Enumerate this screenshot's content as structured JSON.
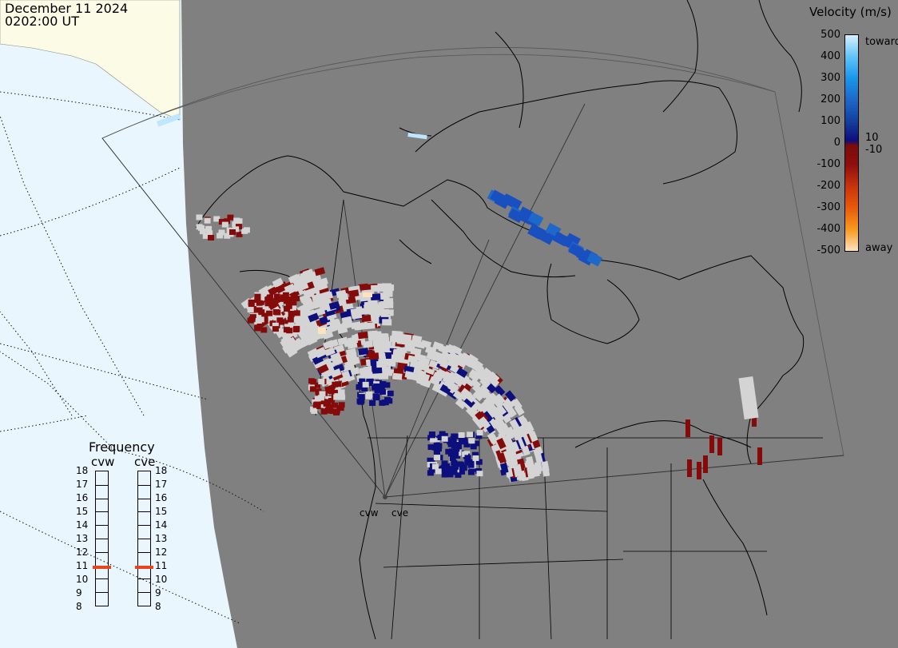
{
  "header": {
    "date": "December 11 2024",
    "time": "0202:00 UT"
  },
  "legend": {
    "title": "Velocity (m/s)",
    "ticks": [
      "500",
      "400",
      "300",
      "200",
      "100",
      "0",
      "-100",
      "-200",
      "-300",
      "-400",
      "-500"
    ],
    "tick_values": [
      500,
      400,
      300,
      200,
      100,
      0,
      -100,
      -200,
      -300,
      -400,
      -500
    ],
    "extra_labels": {
      "pos_small": "10",
      "neg_small": "-10",
      "top": "toward",
      "bottom": "away"
    },
    "color_stops": [
      {
        "v": 500,
        "c": "#d6f0ff"
      },
      {
        "v": 400,
        "c": "#62c4f7"
      },
      {
        "v": 300,
        "c": "#1896ea"
      },
      {
        "v": 200,
        "c": "#1d68c8"
      },
      {
        "v": 100,
        "c": "#143f9c"
      },
      {
        "v": 10,
        "c": "#0c0f7c"
      },
      {
        "v": -10,
        "c": "#7c0b0b"
      },
      {
        "v": -100,
        "c": "#8f0e0e"
      },
      {
        "v": -200,
        "c": "#c8330c"
      },
      {
        "v": -300,
        "c": "#e85a0b"
      },
      {
        "v": -400,
        "c": "#f79a1e"
      },
      {
        "v": -500,
        "c": "#fde2bf"
      }
    ]
  },
  "frequency": {
    "title": "Frequency",
    "radars": [
      {
        "name": "cvw",
        "value_mhz": 10.9
      },
      {
        "name": "cve",
        "value_mhz": 10.9
      }
    ],
    "scale": [
      "18",
      "17",
      "16",
      "15",
      "14",
      "13",
      "12",
      "11",
      "10",
      "9",
      "8"
    ],
    "min": 8,
    "max": 18
  },
  "radar_sites": {
    "labels": [
      "cvw",
      "cve"
    ]
  },
  "colors": {
    "land": "#808080",
    "ocean_edge": "#e9f6fe",
    "lowlat_scatter": "#d4d4d4",
    "toward": "#0c0f7c",
    "away": "#850b0b"
  }
}
